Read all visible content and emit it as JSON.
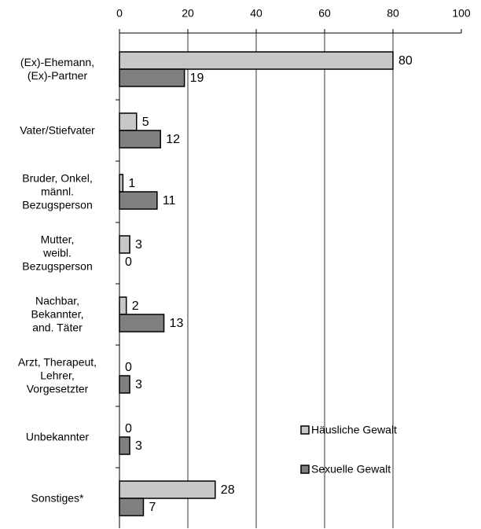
{
  "chart_data": {
    "type": "hbar",
    "categories": [
      "(Ex)-Ehemann,\n(Ex)-Partner",
      "Vater/Stiefvater",
      "Bruder, Onkel,\nmännl.\nBezugsperson",
      "Mutter,\nweibl.\nBezugsperson",
      "Nachbar,\nBekannter,\nand. Täter",
      "Arzt, Therapeut,\nLehrer,\nVorgesetzter",
      "Unbekannter",
      "Sonstiges*"
    ],
    "series": [
      {
        "name": "Häusliche Gewalt",
        "color": "#c8c8c8",
        "values": [
          80,
          5,
          1,
          3,
          2,
          0,
          0,
          28
        ]
      },
      {
        "name": "Sexuelle Gewalt",
        "color": "#808080",
        "values": [
          19,
          12,
          11,
          0,
          13,
          3,
          3,
          7
        ]
      }
    ],
    "xlim": [
      0,
      100
    ],
    "xticks": [
      0,
      20,
      40,
      60,
      80,
      100
    ],
    "grid": true,
    "legend": "lower right"
  }
}
